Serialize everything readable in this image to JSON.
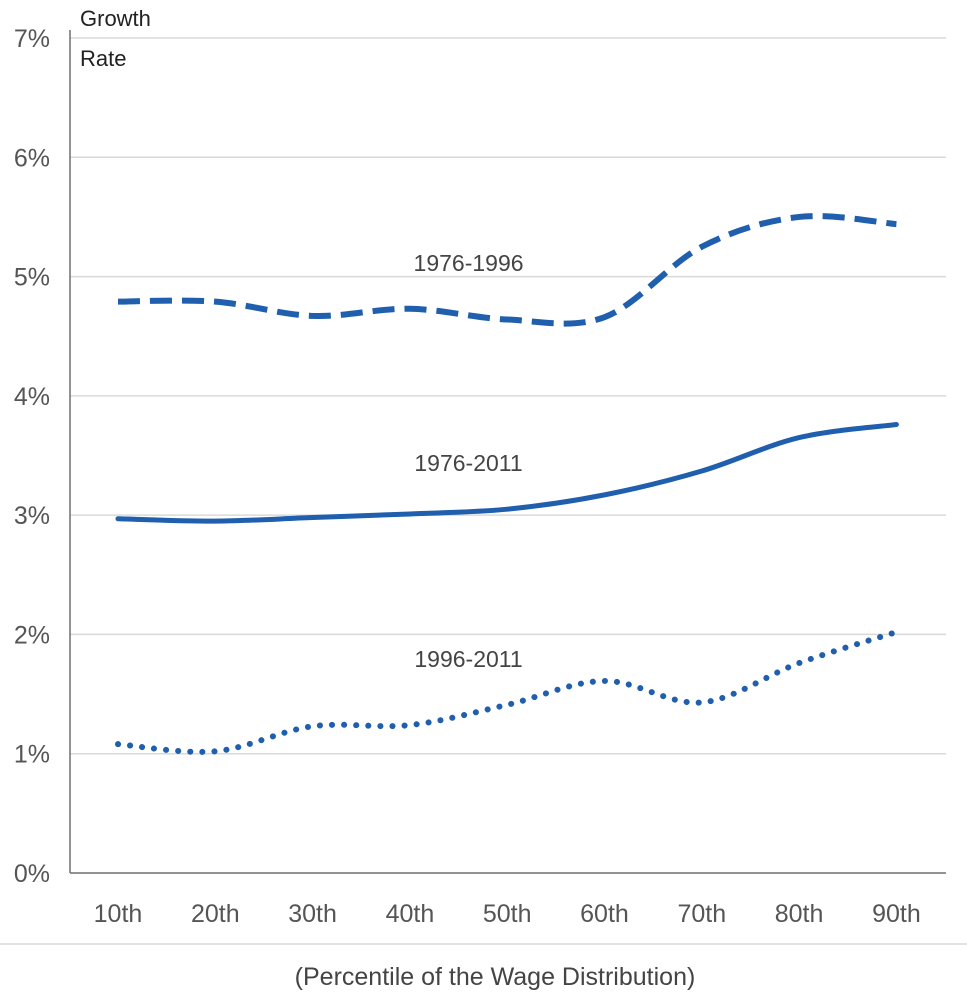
{
  "chart_data": {
    "type": "line",
    "ylabel_line1": "Growth",
    "ylabel_line2": "Rate",
    "xlabel": "(Percentile of the Wage Distribution)",
    "categories": [
      "10th",
      "20th",
      "30th",
      "40th",
      "50th",
      "60th",
      "70th",
      "80th",
      "90th"
    ],
    "ylim": [
      0,
      7
    ],
    "yticks": [
      0,
      1,
      2,
      3,
      4,
      5,
      6,
      7
    ],
    "ytick_labels": [
      "0%",
      "1%",
      "2%",
      "3%",
      "4%",
      "5%",
      "6%",
      "7%"
    ],
    "grid": true,
    "line_color": "#1f5fad",
    "series": [
      {
        "name": "1976-1996",
        "style": "dashed",
        "values": [
          4.79,
          4.79,
          4.67,
          4.73,
          4.64,
          4.66,
          5.25,
          5.5,
          5.44
        ]
      },
      {
        "name": "1976-2011",
        "style": "solid",
        "values": [
          2.97,
          2.95,
          2.98,
          3.01,
          3.05,
          3.17,
          3.37,
          3.65,
          3.76
        ]
      },
      {
        "name": "1996-2011",
        "style": "dotted",
        "values": [
          1.08,
          1.02,
          1.23,
          1.24,
          1.41,
          1.61,
          1.43,
          1.76,
          2.02
        ]
      }
    ]
  }
}
